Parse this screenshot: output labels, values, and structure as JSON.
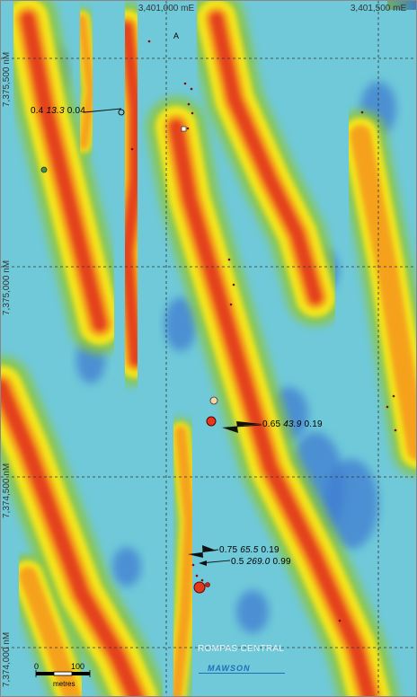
{
  "map": {
    "easting_labels": [
      "3,401,000 mE",
      "3,401,500 mE"
    ],
    "northing_labels": [
      "7,375,500 nM",
      "7,375,000 nM",
      "7,374,500 nM",
      "7,374,000 nM"
    ],
    "north_marker": "A",
    "site_name": "ROMPAS CENTRAL",
    "logo": "MAWSON",
    "scale": {
      "zero": "0",
      "end": "100",
      "unit": "metres"
    },
    "annotations": [
      {
        "values": [
          "0.4",
          "13.3",
          "0.04"
        ]
      },
      {
        "values": [
          "0.65",
          "43.9",
          "0.19"
        ]
      },
      {
        "values": [
          "0.75",
          "65.5",
          "0.19"
        ]
      },
      {
        "values": [
          "0.5",
          "269.0",
          "0.99"
        ]
      }
    ],
    "colors": {
      "background": "#6fc9d9",
      "low": "#3f7dd1",
      "mid_green": "#8dc63f",
      "yellow": "#f3e51f",
      "orange": "#f5a11d",
      "red": "#e2391c",
      "grid": "#333333"
    }
  }
}
